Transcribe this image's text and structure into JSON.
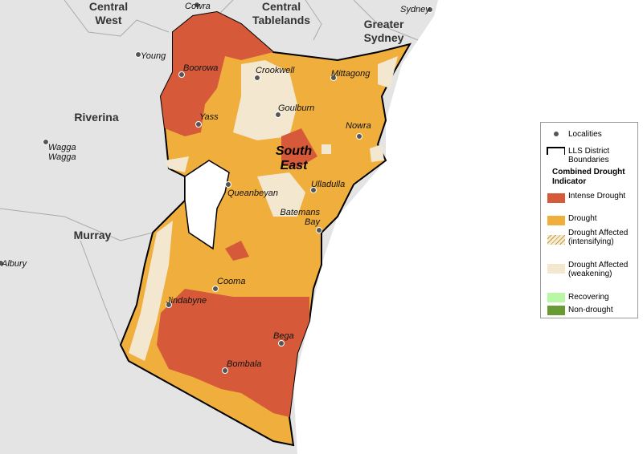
{
  "regions": [
    "Central West",
    "Central Tablelands",
    "Greater Sydney",
    "Riverina",
    "Murray",
    "South East"
  ],
  "localities": [
    "Cowra",
    "Sydney",
    "Young",
    "Boorowa",
    "Crookwell",
    "Mittagong",
    "Goulburn",
    "Yass",
    "Nowra",
    "Wagga Wagga",
    "Queanbeyan",
    "Ulladulla",
    "Batemans Bay",
    "Cooma",
    "Jindabyne",
    "Bega",
    "Bombala",
    "Albury"
  ],
  "legend": {
    "items": [
      "Localities",
      "LLS District Boundaries"
    ],
    "title": "Combined Drought Indicator",
    "categories": [
      "Intense Drought",
      "Drought",
      "Drought Affected (intensifying)",
      "Drought Affected (weakening)",
      "Recovering",
      "Non-drought"
    ]
  }
}
